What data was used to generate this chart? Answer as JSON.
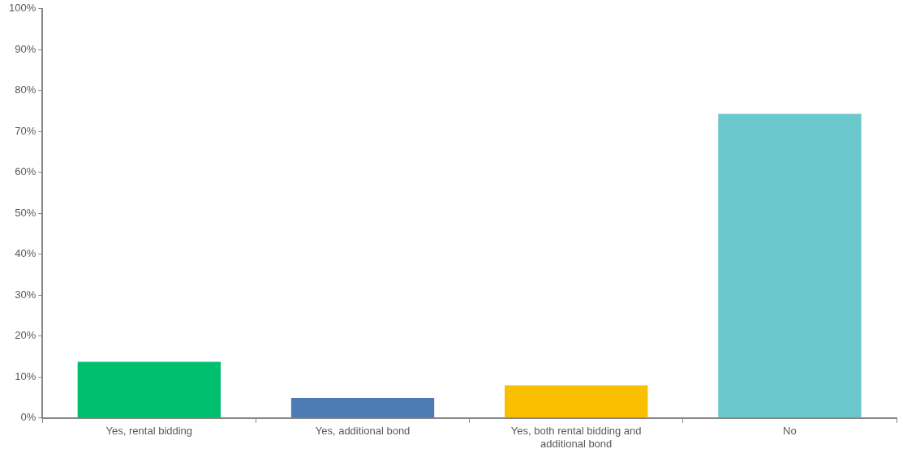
{
  "chart_data": {
    "type": "bar",
    "categories": [
      "Yes, rental bidding",
      "Yes, additional bond",
      "Yes, both rental bidding and additional bond",
      "No"
    ],
    "values": [
      13.7,
      4.9,
      8.0,
      74.3
    ],
    "colors": [
      "#00bf6f",
      "#4f7bb5",
      "#f9bf00",
      "#6bc8cc"
    ],
    "ylim": [
      0,
      100
    ],
    "yticks": [
      {
        "value": 0,
        "label": "0%"
      },
      {
        "value": 10,
        "label": "10%"
      },
      {
        "value": 20,
        "label": "20%"
      },
      {
        "value": 30,
        "label": "30%"
      },
      {
        "value": 40,
        "label": "40%"
      },
      {
        "value": 50,
        "label": "50%"
      },
      {
        "value": 60,
        "label": "60%"
      },
      {
        "value": 70,
        "label": "70%"
      },
      {
        "value": 80,
        "label": "80%"
      },
      {
        "value": 90,
        "label": "90%"
      },
      {
        "value": 100,
        "label": "100%"
      }
    ],
    "grid": false,
    "legend": false
  }
}
